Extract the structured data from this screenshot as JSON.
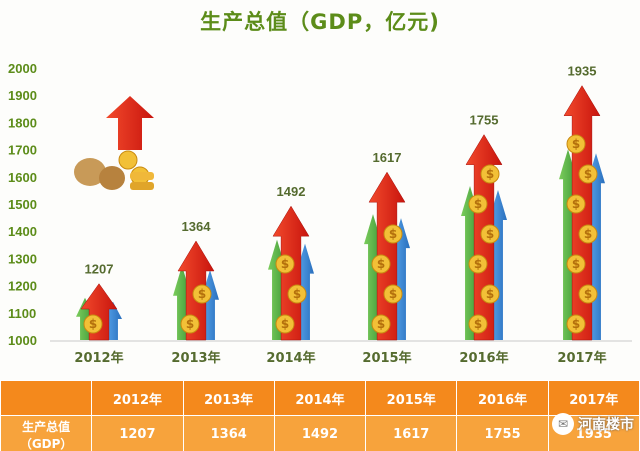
{
  "chart_data": {
    "type": "bar",
    "title": "生产总值（GDP，亿元)",
    "categories": [
      "2012年",
      "2013年",
      "2014年",
      "2015年",
      "2016年",
      "2017年"
    ],
    "values": [
      1207,
      1364,
      1492,
      1617,
      1755,
      1935
    ],
    "ylim": [
      1000,
      2000
    ],
    "yticks": [
      1000,
      1100,
      1200,
      1300,
      1400,
      1500,
      1600,
      1700,
      1800,
      1900,
      2000
    ],
    "xlabel": "",
    "ylabel": "",
    "grid": false,
    "colors": {
      "title": "#5c8c19",
      "tick": "#5c8c19",
      "label": "#556b2f",
      "arrow_red": "#e2231a",
      "arrow_green": "#58b848",
      "arrow_blue": "#3b8fd8",
      "coin": "#f2c037"
    }
  },
  "table": {
    "row_label": "生产总值（GDP）",
    "years": [
      "2012年",
      "2013年",
      "2014年",
      "2015年",
      "2016年",
      "2017年"
    ],
    "values": [
      "1207",
      "1364",
      "1492",
      "1617",
      "1755",
      "1935"
    ],
    "header_color": "#f4891c",
    "body_color": "#f7a33c"
  },
  "watermark": {
    "text": "河南楼市",
    "icon": "wechat-icon"
  }
}
